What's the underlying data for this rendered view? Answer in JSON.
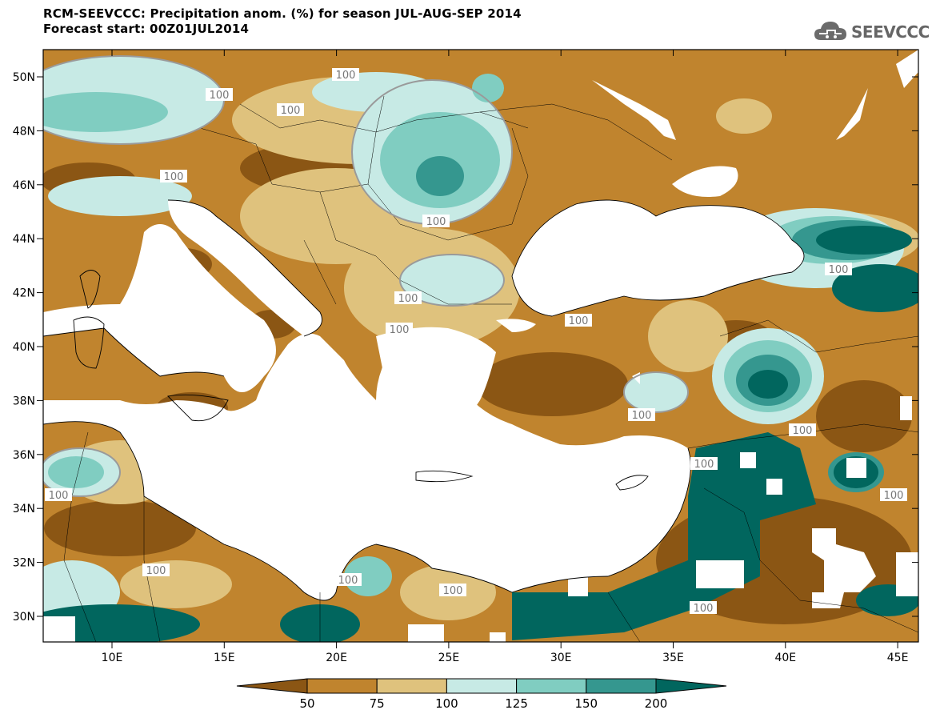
{
  "header": {
    "title": "RCM-SEEVCCC: Precipitation anom. (%) for season JUL-AUG-SEP 2014",
    "subtitle": "Forecast start: 00Z01JUL2014",
    "logo_text": "SEEVCCC"
  },
  "map": {
    "lon_ticks": [
      "10E",
      "15E",
      "20E",
      "25E",
      "30E",
      "35E",
      "40E",
      "45E"
    ],
    "lat_ticks": [
      "50N",
      "48N",
      "46N",
      "44N",
      "42N",
      "40N",
      "38N",
      "36N",
      "34N",
      "32N",
      "30N"
    ],
    "contour_label": "100",
    "colors": {
      "lt50": "#8B5614",
      "50_75": "#C0842E",
      "75_100": "#DFC27D",
      "100_125": "#C7EAE5",
      "125_150": "#80CDC1",
      "150_200": "#35978F",
      "gt200": "#01665E",
      "land_gap": "#ffffff",
      "sea": "#ffffff"
    }
  },
  "legend": {
    "labels": [
      "50",
      "75",
      "100",
      "125",
      "150",
      "200"
    ],
    "colors": [
      "#8B5614",
      "#C0842E",
      "#DFC27D",
      "#C7EAE5",
      "#80CDC1",
      "#35978F",
      "#01665E"
    ]
  }
}
